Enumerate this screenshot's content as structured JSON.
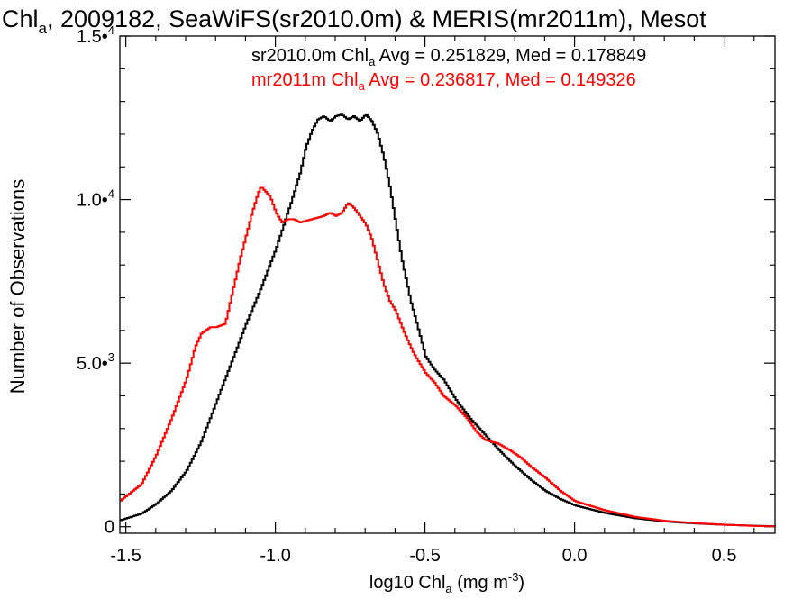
{
  "chart_data": {
    "type": "line",
    "title": {
      "prefix": "Chl",
      "sub": "a",
      "rest": ", 2009182, SeaWiFS(sr2010.0m) & MERIS(mr2011m), Mesot"
    },
    "xlabel": {
      "prefix": "log10 Chl",
      "sub": "a",
      "mid": " (mg m",
      "sup": "-3",
      "end": ")"
    },
    "ylabel": "Number of Observations",
    "xlim": [
      -1.52,
      0.67
    ],
    "ylim": [
      -200,
      15000
    ],
    "x_ticks": [
      {
        "value": -1.5,
        "label": "-1.5"
      },
      {
        "value": -1.0,
        "label": "-1.0"
      },
      {
        "value": -0.5,
        "label": "-0.5"
      },
      {
        "value": 0.0,
        "label": "0.0"
      },
      {
        "value": 0.5,
        "label": "0.5"
      }
    ],
    "y_ticks": [
      {
        "value": 0,
        "mant": "0",
        "exp": ""
      },
      {
        "value": 5000,
        "mant": "5.0•",
        "exp": "3"
      },
      {
        "value": 10000,
        "mant": "1.0•",
        "exp": "4"
      },
      {
        "value": 15000,
        "mant": "1.5•",
        "exp": "4"
      }
    ],
    "series": [
      {
        "name": "sr2010.0m",
        "color": "#000000",
        "legend": {
          "name": "sr2010.0m Chl",
          "sub": "a",
          "stats": " Avg = 0.251829, Med = 0.178849"
        },
        "x": [
          -1.52,
          -1.45,
          -1.4,
          -1.35,
          -1.3,
          -1.25,
          -1.2,
          -1.15,
          -1.1,
          -1.05,
          -1.0,
          -0.95,
          -0.92,
          -0.9,
          -0.88,
          -0.86,
          -0.84,
          -0.82,
          -0.8,
          -0.78,
          -0.76,
          -0.74,
          -0.72,
          -0.7,
          -0.68,
          -0.66,
          -0.64,
          -0.62,
          -0.6,
          -0.58,
          -0.55,
          -0.52,
          -0.5,
          -0.47,
          -0.44,
          -0.4,
          -0.35,
          -0.3,
          -0.25,
          -0.2,
          -0.15,
          -0.1,
          -0.05,
          0.0,
          0.1,
          0.2,
          0.3,
          0.4,
          0.5,
          0.6,
          0.67
        ],
        "y": [
          200,
          400,
          700,
          1100,
          1700,
          2600,
          3800,
          5000,
          6200,
          7300,
          8500,
          9900,
          10800,
          11600,
          12100,
          12450,
          12550,
          12400,
          12550,
          12600,
          12450,
          12550,
          12400,
          12600,
          12400,
          12000,
          11300,
          10400,
          9300,
          8200,
          6900,
          5900,
          5200,
          4800,
          4500,
          3900,
          3300,
          2800,
          2300,
          1850,
          1450,
          1100,
          850,
          650,
          420,
          260,
          160,
          100,
          60,
          30,
          15
        ]
      },
      {
        "name": "mr2011m",
        "color": "#ff0000",
        "legend": {
          "name": "mr2011m Chl",
          "sub": "a",
          "stats": " Avg = 0.236817, Med = 0.149326"
        },
        "x": [
          -1.52,
          -1.45,
          -1.4,
          -1.35,
          -1.3,
          -1.27,
          -1.25,
          -1.22,
          -1.2,
          -1.17,
          -1.15,
          -1.12,
          -1.1,
          -1.08,
          -1.06,
          -1.05,
          -1.04,
          -1.02,
          -1.0,
          -0.98,
          -0.96,
          -0.94,
          -0.92,
          -0.9,
          -0.88,
          -0.86,
          -0.84,
          -0.82,
          -0.8,
          -0.78,
          -0.76,
          -0.74,
          -0.72,
          -0.7,
          -0.68,
          -0.66,
          -0.64,
          -0.62,
          -0.6,
          -0.57,
          -0.54,
          -0.5,
          -0.47,
          -0.44,
          -0.4,
          -0.36,
          -0.33,
          -0.3,
          -0.26,
          -0.22,
          -0.18,
          -0.15,
          -0.1,
          -0.05,
          0.0,
          0.1,
          0.2,
          0.3,
          0.4,
          0.5,
          0.6,
          0.67
        ],
        "y": [
          800,
          1300,
          2200,
          3300,
          4500,
          5500,
          5900,
          6100,
          6100,
          6200,
          7000,
          8200,
          8900,
          9600,
          10200,
          10400,
          10300,
          10100,
          9600,
          9300,
          9400,
          9400,
          9300,
          9350,
          9400,
          9450,
          9500,
          9600,
          9500,
          9600,
          9900,
          9750,
          9500,
          9250,
          8800,
          8100,
          7400,
          6900,
          6600,
          5900,
          5300,
          4700,
          4400,
          4000,
          3700,
          3300,
          2900,
          2650,
          2550,
          2350,
          2100,
          1850,
          1500,
          1100,
          780,
          500,
          300,
          180,
          110,
          60,
          25,
          10
        ]
      }
    ]
  }
}
